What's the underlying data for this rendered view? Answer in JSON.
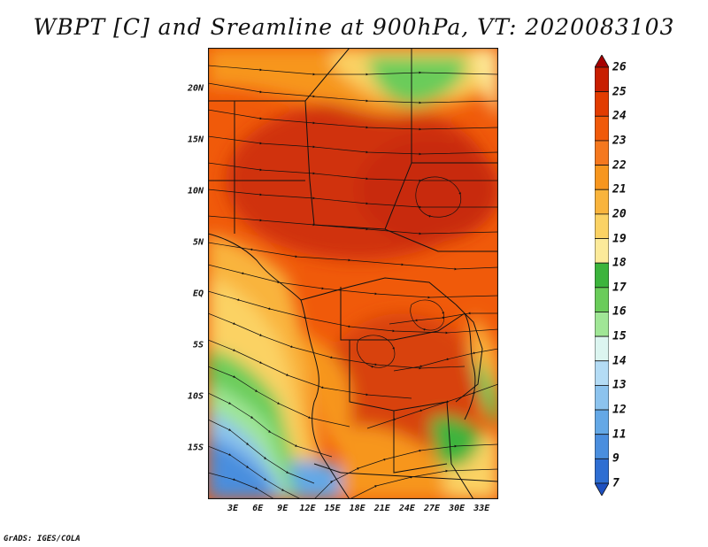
{
  "title": "WBPT [C] and Sreamline at 900hPa, VT: 2020083103",
  "credit": "GrADS: IGES/COLA",
  "map": {
    "variable": "Wet-bulb potential temperature",
    "units": "C",
    "level": "900hPa",
    "valid_time": "2020083103",
    "lat_range": [
      -20,
      24
    ],
    "lon_range": [
      0,
      35
    ],
    "lat_ticks": [
      {
        "value": 20,
        "label": "20N"
      },
      {
        "value": 15,
        "label": "15N"
      },
      {
        "value": 10,
        "label": "10N"
      },
      {
        "value": 5,
        "label": "5N"
      },
      {
        "value": 0,
        "label": "EQ"
      },
      {
        "value": -5,
        "label": "5S"
      },
      {
        "value": -10,
        "label": "10S"
      },
      {
        "value": -15,
        "label": "15S"
      }
    ],
    "lon_ticks": [
      {
        "value": 3,
        "label": "3E"
      },
      {
        "value": 6,
        "label": "6E"
      },
      {
        "value": 9,
        "label": "9E"
      },
      {
        "value": 12,
        "label": "12E"
      },
      {
        "value": 15,
        "label": "15E"
      },
      {
        "value": 18,
        "label": "18E"
      },
      {
        "value": 21,
        "label": "21E"
      },
      {
        "value": 24,
        "label": "24E"
      },
      {
        "value": 27,
        "label": "27E"
      },
      {
        "value": 30,
        "label": "30E"
      },
      {
        "value": 33,
        "label": "33E"
      }
    ]
  },
  "colorbar": {
    "levels": [
      "26",
      "25",
      "24",
      "23",
      "22",
      "21",
      "20",
      "19",
      "18",
      "17",
      "16",
      "15",
      "14",
      "13",
      "12",
      "11",
      "9",
      "7"
    ],
    "colors": [
      "#a50000",
      "#c81e00",
      "#e23c00",
      "#f05a0a",
      "#f5781e",
      "#f7961e",
      "#f9b43c",
      "#fbd264",
      "#fcea9a",
      "#3cb43c",
      "#6acc5a",
      "#a0e696",
      "#dcf5f0",
      "#b4dcf5",
      "#8cc3ee",
      "#64a8e6",
      "#4a8ede",
      "#2e6ed2",
      "#1e50c0"
    ]
  }
}
